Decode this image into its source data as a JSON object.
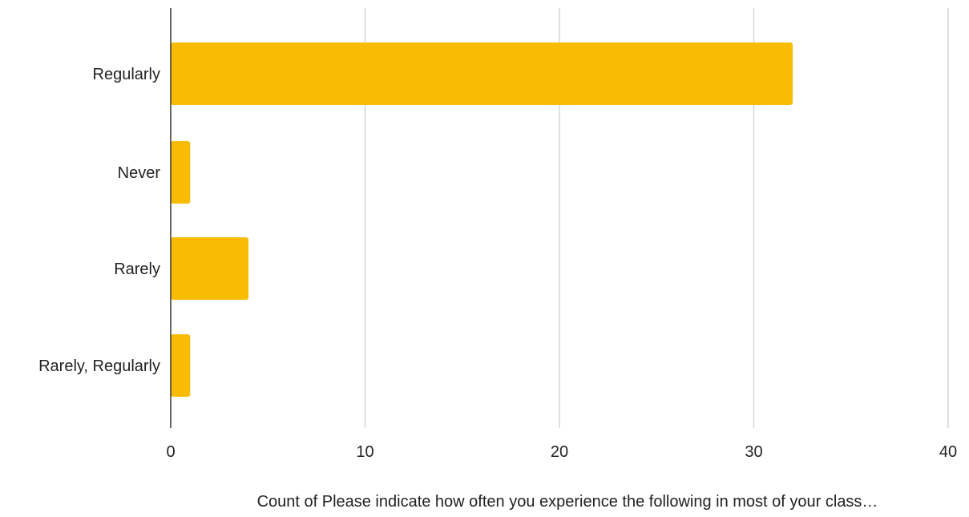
{
  "colors": {
    "bar": "#F9BC05",
    "gridline": "#CCCCCC",
    "axis": "#333333",
    "text": "#222222",
    "background": "#FFFFFF"
  },
  "chart_data": {
    "type": "bar",
    "orientation": "horizontal",
    "categories": [
      "Regularly",
      "Never",
      "Rarely",
      "Rarely, Regularly"
    ],
    "values": [
      32,
      1,
      4,
      1
    ],
    "title": "",
    "xlabel": "Count of Please indicate how often you experience the following in most of your class…",
    "ylabel": "",
    "xlim": [
      0,
      40
    ],
    "x_ticks": [
      0,
      10,
      20,
      30,
      40
    ],
    "x_tick_labels": [
      "0",
      "10",
      "20",
      "30",
      "40"
    ],
    "grid": true,
    "legend": "none"
  }
}
